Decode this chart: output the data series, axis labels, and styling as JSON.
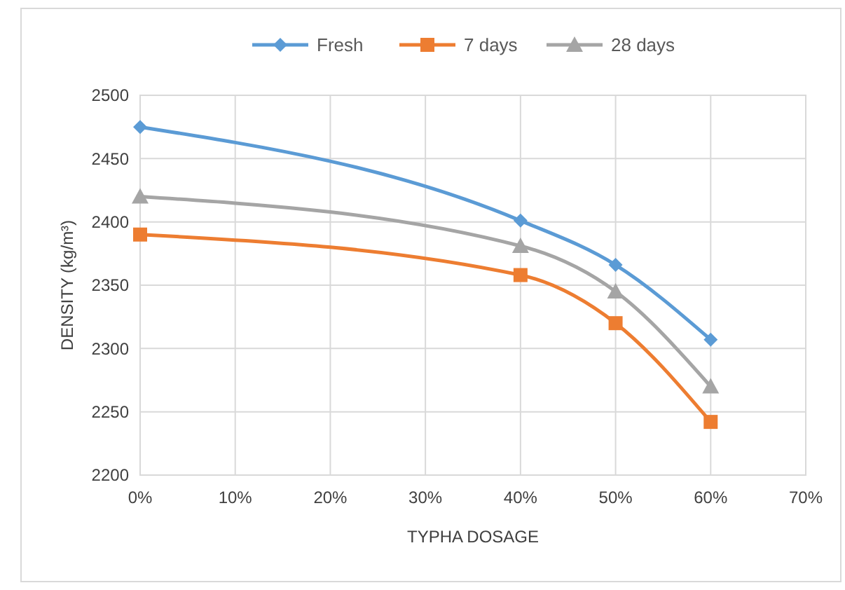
{
  "chart_data": {
    "type": "line",
    "xlabel": "TYPHA DOSAGE",
    "ylabel": "DENSITY (kg/m³)",
    "x": [
      0,
      40,
      50,
      60
    ],
    "series": [
      {
        "name": "Fresh",
        "color": "#5b9bd5",
        "marker": "diamond",
        "values": [
          2475,
          2401,
          2366,
          2307
        ]
      },
      {
        "name": "7 days",
        "color": "#ed7d31",
        "marker": "square",
        "values": [
          2390,
          2358,
          2320,
          2242
        ]
      },
      {
        "name": "28 days",
        "color": "#a5a5a5",
        "marker": "triangle",
        "values": [
          2420,
          2381,
          2345,
          2270
        ]
      }
    ],
    "xlim": [
      0,
      70
    ],
    "xticks": [
      {
        "value": 0,
        "label": "0%"
      },
      {
        "value": 10,
        "label": "10%"
      },
      {
        "value": 20,
        "label": "20%"
      },
      {
        "value": 30,
        "label": "30%"
      },
      {
        "value": 40,
        "label": "40%"
      },
      {
        "value": 50,
        "label": "50%"
      },
      {
        "value": 60,
        "label": "60%"
      },
      {
        "value": 70,
        "label": "70%"
      }
    ],
    "ylim": [
      2200,
      2500
    ],
    "yticks": [
      2200,
      2250,
      2300,
      2350,
      2400,
      2450,
      2500
    ],
    "grid": true,
    "legend": "top"
  }
}
